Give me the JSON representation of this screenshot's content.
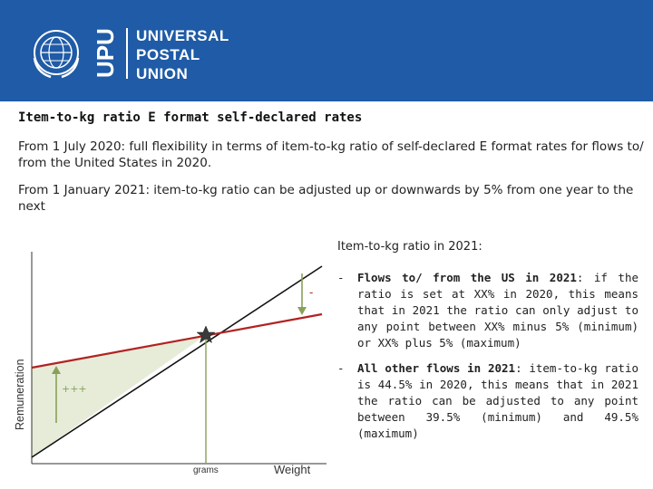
{
  "header": {
    "org_abbrev": "UPU",
    "org_name_lines": [
      "UNIVERSAL",
      "POSTAL",
      "UNION"
    ],
    "bg_color": "#1f5ba6"
  },
  "icons": {
    "logo": "upu-emblem-icon"
  },
  "slide": {
    "title": "Item-to-kg ratio E format self-declared rates",
    "paragraphs": [
      "From 1 July 2020: full flexibility in terms of item-to-kg ratio of self-declared E format rates for flows to/ from the United States in 2020.",
      "From 1 January 2021: item-to-kg ratio can be adjusted up or downwards by 5% from one year to the next"
    ]
  },
  "chart": {
    "heading": "Item-to-kg ratio in 2021:",
    "ylabel": "Remuneration",
    "xlabel": "Weight",
    "tick_label": "grams",
    "minus_label": "-",
    "plus_label": "+++",
    "colors": {
      "line_black": "#111111",
      "line_red": "#b22222",
      "arrow_green": "#8aa05a",
      "fill": "#e6ecd8"
    }
  },
  "bullets": [
    {
      "dash": "-",
      "bold": "Flows to/ from the US in 2021",
      "text": ": if the ratio is set at XX% in 2020, this means that in 2021 the ratio can only adjust to any point between XX% minus 5% (minimum) or XX% plus 5% (maximum)"
    },
    {
      "dash": "-",
      "bold": "All other flows in 2021",
      "text": ": item-to-kg ratio is 44.5% in 2020, this means that in 2021 the ratio can be adjusted to any point between 39.5% (minimum) and 49.5% (maximum)"
    }
  ]
}
